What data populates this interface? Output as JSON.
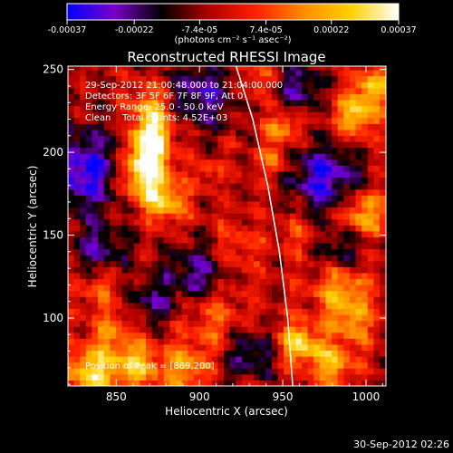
{
  "chart_data": {
    "type": "heatmap",
    "title": "Reconstructed RHESSI Image",
    "xlabel": "Heliocentric X (arcsec)",
    "ylabel": "Heliocentric Y (arcsec)",
    "xlim": [
      821,
      1012
    ],
    "ylim": [
      59,
      252
    ],
    "x_ticks": [
      850,
      900,
      950,
      1000
    ],
    "y_ticks": [
      100,
      150,
      200,
      250
    ],
    "colorbar": {
      "range": [
        -0.00037,
        0.00037
      ],
      "tick_values": [
        -0.00037,
        -0.00022,
        -7.4e-05,
        7.4e-05,
        0.00022,
        0.00037
      ],
      "tick_labels": [
        "-0.00037",
        "-0.00022",
        "-7.4e-05",
        "7.4e-05",
        "0.00022",
        "0.00037"
      ],
      "unit_label": "(photons cm⁻² s⁻¹ asec⁻²)",
      "stops": [
        "#0000ff",
        "#7a00c8",
        "#000000",
        "#b00000",
        "#ff2000",
        "#ff8c00",
        "#ffd200",
        "#ffffff"
      ]
    },
    "annotations": {
      "time": "29-Sep-2012 21:00:48.000 to 21:04:00.000",
      "detectors": "Detectors: 3F 5F 6F 7F 8F 9F, Att 0",
      "energy": "Energy Range: 25.0 - 50.0 keV",
      "clean": "Clean    Total counts: 4.52E+03",
      "peak": "Position of Peak = [869,200]"
    },
    "limb_curve": [
      [
        922,
        252
      ],
      [
        932,
        220
      ],
      [
        941,
        180
      ],
      [
        948,
        140
      ],
      [
        953,
        100
      ],
      [
        956,
        59
      ]
    ],
    "sources": [
      {
        "x": 869,
        "y": 200,
        "amp": 1.0,
        "s": 9
      },
      {
        "x": 866,
        "y": 184,
        "amp": 0.9,
        "s": 10
      },
      {
        "x": 872,
        "y": 214,
        "amp": 0.8,
        "s": 8
      },
      {
        "x": 880,
        "y": 170,
        "amp": 0.7,
        "s": 9
      },
      {
        "x": 872,
        "y": 229,
        "amp": 0.6,
        "s": 9
      },
      {
        "x": 994,
        "y": 223,
        "amp": 0.8,
        "s": 9
      },
      {
        "x": 1005,
        "y": 240,
        "amp": 0.7,
        "s": 8
      },
      {
        "x": 998,
        "y": 162,
        "amp": 0.75,
        "s": 10
      },
      {
        "x": 985,
        "y": 120,
        "amp": 0.7,
        "s": 12
      },
      {
        "x": 992,
        "y": 98,
        "amp": 0.55,
        "s": 9
      },
      {
        "x": 960,
        "y": 85,
        "amp": 0.85,
        "s": 9
      },
      {
        "x": 980,
        "y": 72,
        "amp": 0.7,
        "s": 9
      },
      {
        "x": 835,
        "y": 68,
        "amp": 0.9,
        "s": 10
      },
      {
        "x": 862,
        "y": 72,
        "amp": 0.75,
        "s": 10
      },
      {
        "x": 892,
        "y": 70,
        "amp": 0.6,
        "s": 10
      },
      {
        "x": 950,
        "y": 215,
        "amp": 0.6,
        "s": 7
      },
      {
        "x": 945,
        "y": 195,
        "amp": 0.5,
        "s": 6
      },
      {
        "x": 920,
        "y": 142,
        "amp": 0.35,
        "s": 12
      },
      {
        "x": 910,
        "y": 100,
        "amp": 0.45,
        "s": 14
      },
      {
        "x": 840,
        "y": 120,
        "amp": 0.4,
        "s": 10
      },
      {
        "x": 848,
        "y": 92,
        "amp": 0.45,
        "s": 9
      },
      {
        "x": 905,
        "y": 188,
        "amp": 0.3,
        "s": 6
      },
      {
        "x": 960,
        "y": 150,
        "amp": 0.3,
        "s": 9
      },
      {
        "x": 935,
        "y": 245,
        "amp": 0.35,
        "s": 8
      }
    ],
    "negative_regions": [
      {
        "x": 830,
        "y": 190,
        "amp": 0.9,
        "s": 18
      },
      {
        "x": 900,
        "y": 235,
        "amp": 0.7,
        "s": 14
      },
      {
        "x": 960,
        "y": 240,
        "amp": 0.6,
        "s": 10
      },
      {
        "x": 975,
        "y": 185,
        "amp": 0.9,
        "s": 14
      },
      {
        "x": 985,
        "y": 140,
        "amp": 0.6,
        "s": 12
      },
      {
        "x": 900,
        "y": 128,
        "amp": 0.7,
        "s": 14
      },
      {
        "x": 840,
        "y": 140,
        "amp": 0.6,
        "s": 12
      },
      {
        "x": 930,
        "y": 80,
        "amp": 0.6,
        "s": 12
      },
      {
        "x": 870,
        "y": 110,
        "amp": 0.5,
        "s": 10
      }
    ]
  },
  "footer": {
    "timestamp": "30-Sep-2012 02:26"
  }
}
